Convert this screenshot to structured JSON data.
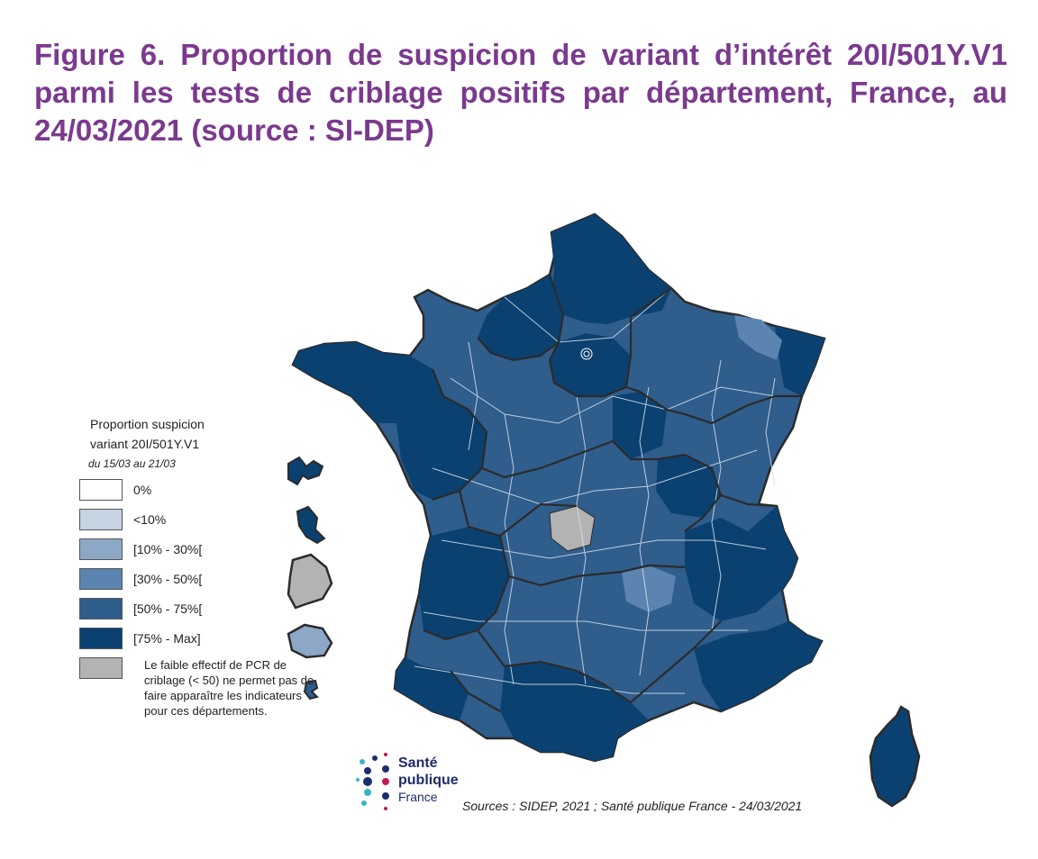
{
  "figure": {
    "label": "Figure 6.",
    "title": "Proportion de suspicion de variant d’intérêt 20I/501Y.V1 parmi les tests de criblage positifs par département, France, au 24/03/2021  (source : SI-DEP)"
  },
  "legend": {
    "title_line1": "Proportion suspicion",
    "title_line2": "variant 20I/501Y.V1",
    "period": "du 15/03 au 21/03",
    "classes": [
      {
        "label": "0%",
        "color": "#ffffff"
      },
      {
        "label": "<10%",
        "color": "#c5d3e2"
      },
      {
        "label": "[10% - 30%[",
        "color": "#8da8c6"
      },
      {
        "label": "[30% - 50%[",
        "color": "#5c84b0"
      },
      {
        "label": "[50% - 75%[",
        "color": "#2f5d8c"
      },
      {
        "label": "[75% - Max]",
        "color": "#0b4170"
      }
    ],
    "no_data": {
      "color": "#b3b3b3",
      "note": "Le faible effectif de PCR de criblage (< 50) ne permet pas de faire apparaître les indicateurs pour ces départements."
    }
  },
  "map_colors": {
    "max": "#0b4170",
    "high": "#2f5d8c",
    "mid": "#5c84b0",
    "low": "#8da8c6",
    "no_data": "#b3b3b3",
    "borders": "#2b2b2b",
    "dept_lines": "#d6e0ec"
  },
  "logo": {
    "line1": "Santé",
    "line2": "publique",
    "line3": "France"
  },
  "source": "Sources : SIDEP, 2021 ; Santé publique France - 24/03/2021"
}
